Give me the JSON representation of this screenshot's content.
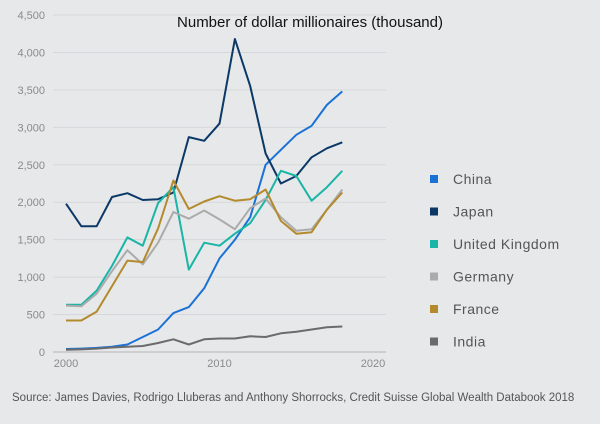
{
  "chart_data": {
    "type": "line",
    "title": "Number of dollar millionaires (thousand)",
    "xlabel": "",
    "ylabel": "",
    "x": [
      2000,
      2001,
      2002,
      2003,
      2004,
      2005,
      2006,
      2007,
      2008,
      2009,
      2010,
      2011,
      2012,
      2013,
      2014,
      2015,
      2016,
      2017,
      2018
    ],
    "xlim": [
      2000,
      2020
    ],
    "ylim": [
      0,
      4500
    ],
    "xticks": [
      "2000",
      "2010",
      "2020"
    ],
    "xtick_values": [
      2000,
      2010,
      2020
    ],
    "yticks": [
      "0",
      "500",
      "1,000",
      "1,500",
      "2,000",
      "2,500",
      "3,000",
      "3,500",
      "4,000",
      "4,500"
    ],
    "ytick_values": [
      0,
      500,
      1000,
      1500,
      2000,
      2500,
      3000,
      3500,
      4000,
      4500
    ],
    "grid": "horizontal",
    "legend_position": "right",
    "series": [
      {
        "name": "China",
        "color": "#1a72d6",
        "values": [
          40,
          45,
          55,
          70,
          100,
          200,
          300,
          520,
          600,
          850,
          1250,
          1500,
          1800,
          2500,
          2700,
          2900,
          3020,
          3300,
          3480
        ]
      },
      {
        "name": "Japan",
        "color": "#0b3866",
        "values": [
          1980,
          1680,
          1680,
          2070,
          2120,
          2030,
          2040,
          2130,
          2870,
          2820,
          3050,
          4180,
          3550,
          2650,
          2250,
          2350,
          2600,
          2720,
          2800
        ]
      },
      {
        "name": "United Kingdom",
        "color": "#19b5a6",
        "values": [
          630,
          630,
          820,
          1150,
          1530,
          1420,
          1990,
          2200,
          1100,
          1460,
          1420,
          1580,
          1720,
          2030,
          2420,
          2350,
          2020,
          2200,
          2420
        ]
      },
      {
        "name": "Germany",
        "color": "#ababab",
        "values": [
          620,
          610,
          780,
          1080,
          1360,
          1170,
          1460,
          1870,
          1780,
          1890,
          1770,
          1640,
          1920,
          2050,
          1800,
          1620,
          1640,
          1900,
          2170
        ]
      },
      {
        "name": "France",
        "color": "#b38a2c",
        "values": [
          420,
          420,
          540,
          880,
          1220,
          1200,
          1650,
          2290,
          1910,
          2010,
          2080,
          2020,
          2040,
          2170,
          1750,
          1580,
          1600,
          1900,
          2130
        ]
      },
      {
        "name": "India",
        "color": "#6b6b6b",
        "values": [
          30,
          35,
          45,
          60,
          70,
          80,
          120,
          170,
          100,
          170,
          180,
          180,
          210,
          200,
          250,
          270,
          300,
          330,
          340
        ]
      }
    ]
  },
  "source": "Source: James Davies, Rodrigo Lluberas and Anthony Shorrocks, Credit Suisse Global Wealth Databook 2018"
}
